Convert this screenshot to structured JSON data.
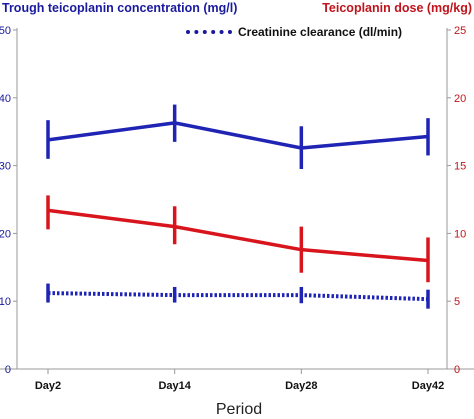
{
  "chart_data": {
    "type": "line",
    "left_axis_title": "Trough teicoplanin concentration (mg/l)",
    "right_axis_title": "Teicoplanin dose (mg/kg)",
    "xlabel": "Period",
    "categories": [
      "Day2",
      "Day14",
      "Day28",
      "Day42"
    ],
    "left_axis": {
      "ylim": [
        0,
        50
      ],
      "ticks": [
        0,
        10,
        20,
        30,
        40,
        50
      ]
    },
    "right_axis": {
      "ylim": [
        0,
        25
      ],
      "ticks": [
        0,
        5,
        10,
        15,
        20,
        25
      ]
    },
    "legend": {
      "placement": "top-right",
      "entries": [
        "Creatinine clearance (dl/min)"
      ]
    },
    "grid": false,
    "series": [
      {
        "key": "trough",
        "axis": "left",
        "style": "solid",
        "color": "#1f24b4",
        "values": [
          33.8,
          36.3,
          32.6,
          34.3
        ],
        "error_low": [
          31.0,
          33.5,
          29.5,
          31.5
        ],
        "error_high": [
          36.7,
          39.0,
          35.8,
          37.0
        ]
      },
      {
        "key": "dose",
        "axis": "right",
        "style": "solid",
        "color": "#d8141c",
        "values": [
          11.7,
          10.5,
          8.8,
          8.0
        ],
        "error_low": [
          10.3,
          9.2,
          7.1,
          6.4
        ],
        "error_high": [
          12.8,
          12.0,
          10.5,
          9.7
        ]
      },
      {
        "key": "creatinine",
        "name": "Creatinine clearance (dl/min)",
        "axis": "left",
        "style": "dotted",
        "color": "#1f24b4",
        "values": [
          11.2,
          10.9,
          10.9,
          10.3
        ],
        "error_low": [
          9.8,
          9.8,
          9.7,
          8.9
        ],
        "error_high": [
          12.6,
          12.1,
          12.1,
          11.7
        ]
      }
    ]
  }
}
